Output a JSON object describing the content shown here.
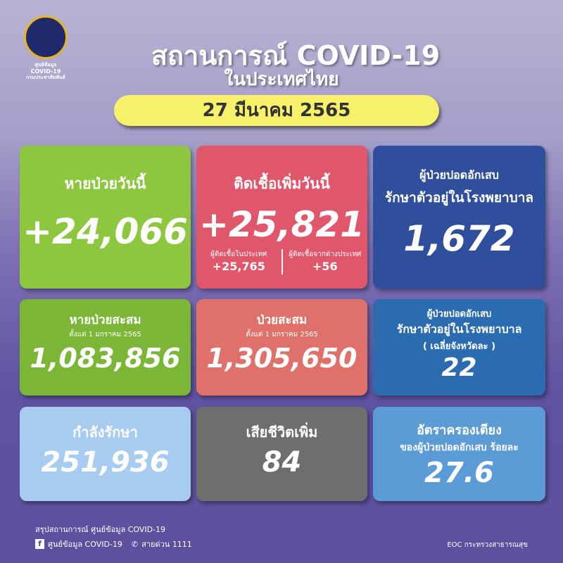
{
  "logo": {
    "line1": "ศูนย์ข้อมูล",
    "line2": "COVID-19",
    "line3": "กรมประชาสัมพันธ์"
  },
  "header": {
    "title": "สถานการณ์ COVID-19",
    "subtitle": "ในประเทศไทย",
    "date": "27 มีนาคม 2565"
  },
  "cards": {
    "recovered_today": {
      "label": "หายป่วยวันนี้",
      "value": "+24,066",
      "color": "#8dc73f"
    },
    "new_cases": {
      "label": "ติดเชื้อเพิ่มวันนี้",
      "value": "+25,821",
      "color": "#e0566a",
      "domestic_label": "ผู้ติดเชื้อในประเทศ",
      "domestic_value": "+25,765",
      "imported_label": "ผู้ติดเชื้อจากต่างประเทศ",
      "imported_value": "+56"
    },
    "pneumonia": {
      "label1": "ผู้ป่วยปอดอักเสบ",
      "label2": "รักษาตัวอยู่ในโรงพยาบาล",
      "value": "1,672",
      "color": "#2f4e9b"
    },
    "recovered_total": {
      "label": "หายป่วยสะสม",
      "sub": "ตั้งแต่ 1 มกราคม 2565",
      "value": "1,083,856",
      "color": "#7bb636"
    },
    "cases_total": {
      "label": "ป่วยสะสม",
      "sub": "ตั้งแต่ 1 มกราคม 2565",
      "value": "1,305,650",
      "color": "#e0716a"
    },
    "pneumonia_avg": {
      "label1": "ผู้ป่วยปอดอักเสบ",
      "label2": "รักษาตัวอยู่ในโรงพยาบาล",
      "label3": "( เฉลี่ยจังหวัดละ )",
      "value": "22",
      "color": "#2b6cb0"
    },
    "in_treatment": {
      "label": "กำลังรักษา",
      "value": "251,936",
      "color": "#a8cbf0"
    },
    "deaths": {
      "label": "เสียชีวิตเพิ่ม",
      "value": "84",
      "color": "#6e6e6e"
    },
    "bed_rate": {
      "label1": "อัตราครองเตียง",
      "label2": "ของผู้ป่วยปอดอักเสบ ร้อยละ",
      "value": "27.6",
      "color": "#5b9bd6"
    }
  },
  "footer": {
    "summary": "สรุปสถานการณ์ ศูนย์ข้อมูล COVID-19",
    "facebook": "ศูนย์ข้อมูล COVID-19",
    "hotline": "สายด่วน 1111",
    "source": "EOC กระทรวงสาธารณสุข",
    "facebook_icon": "f"
  }
}
